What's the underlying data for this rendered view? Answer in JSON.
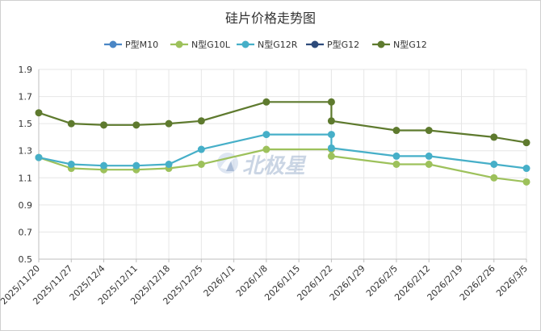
{
  "chart_data": {
    "type": "line",
    "title": "硅片价格走势图",
    "watermark": "北极星",
    "categories": [
      "2025/11/20",
      "2025/11/27",
      "2025/12/4",
      "2025/12/11",
      "2025/12/18",
      "2025/12/25",
      "2026/1/1",
      "2026/1/8",
      "2026/1/15",
      "2026/1/22",
      "2026/1/29",
      "2026/2/5",
      "2026/2/12",
      "2026/2/19",
      "2026/2/26",
      "2026/3/5"
    ],
    "ylim": [
      0.5,
      1.9
    ],
    "yticks": [
      "0.5",
      "0.7",
      "0.9",
      "1.1",
      "1.3",
      "1.5",
      "1.7",
      "1.9"
    ],
    "ytick_values": [
      0.5,
      0.7,
      0.9,
      1.1,
      1.3,
      1.5,
      1.7,
      1.9
    ],
    "legend_position": "top",
    "grid": true,
    "series": [
      {
        "name": "P型M10",
        "color": "#4a86c5",
        "points": []
      },
      {
        "name": "N型G10L",
        "color": "#9dc15b",
        "points": [
          [
            0,
            1.25
          ],
          [
            1,
            1.17
          ],
          [
            2,
            1.16
          ],
          [
            3,
            1.16
          ],
          [
            4,
            1.17
          ],
          [
            5,
            1.2
          ],
          [
            7,
            1.31
          ],
          [
            9,
            1.31
          ],
          [
            9,
            1.26
          ],
          [
            11,
            1.2
          ],
          [
            12,
            1.2
          ],
          [
            14,
            1.1
          ],
          [
            15,
            1.07
          ]
        ]
      },
      {
        "name": "N型G12R",
        "color": "#46afc8",
        "points": [
          [
            0,
            1.25
          ],
          [
            1,
            1.2
          ],
          [
            2,
            1.19
          ],
          [
            3,
            1.19
          ],
          [
            4,
            1.2
          ],
          [
            5,
            1.31
          ],
          [
            7,
            1.42
          ],
          [
            9,
            1.42
          ],
          [
            9,
            1.32
          ],
          [
            11,
            1.26
          ],
          [
            12,
            1.26
          ],
          [
            14,
            1.2
          ],
          [
            15,
            1.17
          ]
        ]
      },
      {
        "name": "P型G12",
        "color": "#2d4a7a",
        "points": []
      },
      {
        "name": "N型G12",
        "color": "#5e7a2e",
        "points": [
          [
            0,
            1.58
          ],
          [
            1,
            1.5
          ],
          [
            2,
            1.49
          ],
          [
            3,
            1.49
          ],
          [
            4,
            1.5
          ],
          [
            5,
            1.52
          ],
          [
            7,
            1.66
          ],
          [
            9,
            1.66
          ],
          [
            9,
            1.52
          ],
          [
            11,
            1.45
          ],
          [
            12,
            1.45
          ],
          [
            14,
            1.4
          ],
          [
            15,
            1.36
          ]
        ]
      }
    ]
  }
}
